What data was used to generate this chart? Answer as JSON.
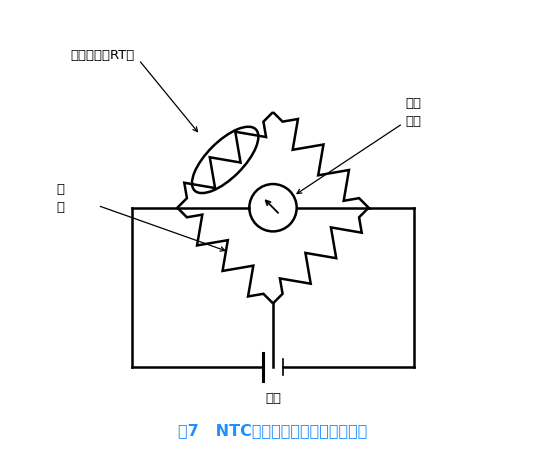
{
  "title": "图7   NTC温度传感器温度测量原理图",
  "title_color": "#1E90FF",
  "bg_color": "#FFFFFF",
  "line_color": "#000000",
  "label_guiling": "归\n零",
  "label_rt": "热敏电阻（RT）",
  "label_zhizhen": "温度\n指针",
  "label_dianyuan": "电源",
  "figsize": [
    5.46,
    4.61
  ],
  "dpi": 100
}
